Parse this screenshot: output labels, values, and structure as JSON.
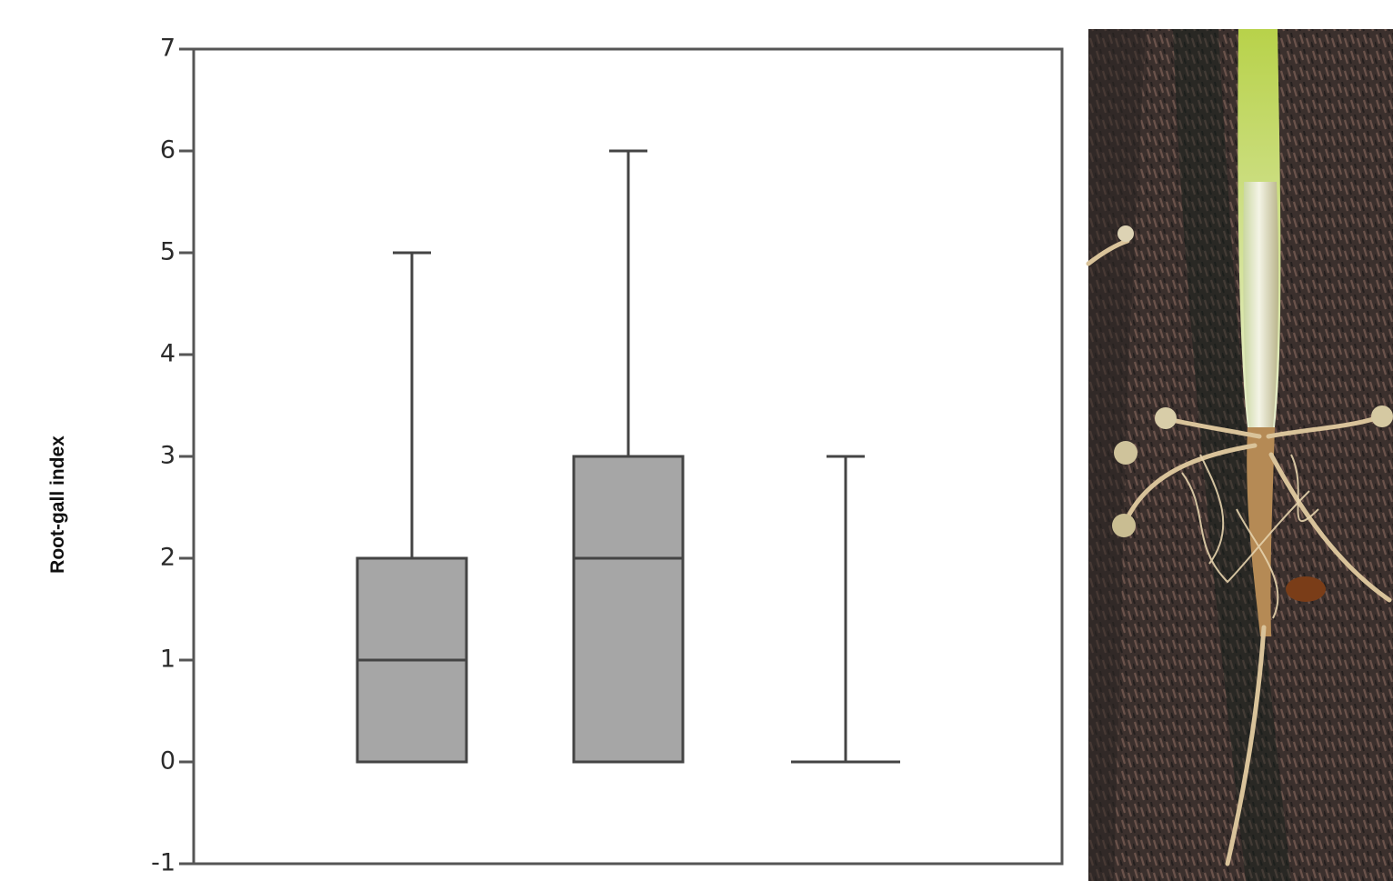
{
  "chart_data": {
    "type": "box",
    "y_label": "Root-gall index",
    "categories": [
      null,
      null,
      null
    ],
    "boxes": [
      {
        "min": 0,
        "q1": 0,
        "median": 1,
        "q3": 2,
        "max": 5
      },
      {
        "min": 0,
        "q1": 0,
        "median": 2,
        "q3": 3,
        "max": 6
      },
      {
        "min": 0,
        "q1": 0,
        "median": 0,
        "q3": 0,
        "max": 3
      }
    ],
    "color": "#a6a6a6",
    "ylim": [
      -1,
      7
    ],
    "yticks": [
      -1,
      0,
      1,
      2,
      3,
      4,
      5,
      6,
      7
    ]
  }
}
